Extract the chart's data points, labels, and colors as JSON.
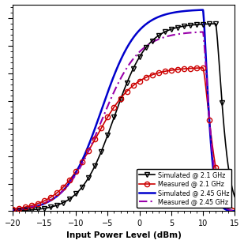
{
  "xlabel": "Input Power Level (dBm)",
  "xlim": [
    -20,
    15
  ],
  "ylim": [
    0,
    75
  ],
  "x_ticks": [
    -20,
    -15,
    -10,
    -5,
    0,
    5,
    10,
    15
  ],
  "legend": [
    "Simulated @ 2.1 GHz",
    "Measured @ 2.1 GHz",
    "Simulated @ 2.45 GHz",
    "Measured @ 2.45 GHz"
  ],
  "colors": {
    "sim_21": "#000000",
    "meas_21": "#cc0000",
    "sim_245": "#0000cc",
    "meas_245": "#9900aa"
  },
  "figsize": [
    3.09,
    3.09
  ],
  "dpi": 100
}
